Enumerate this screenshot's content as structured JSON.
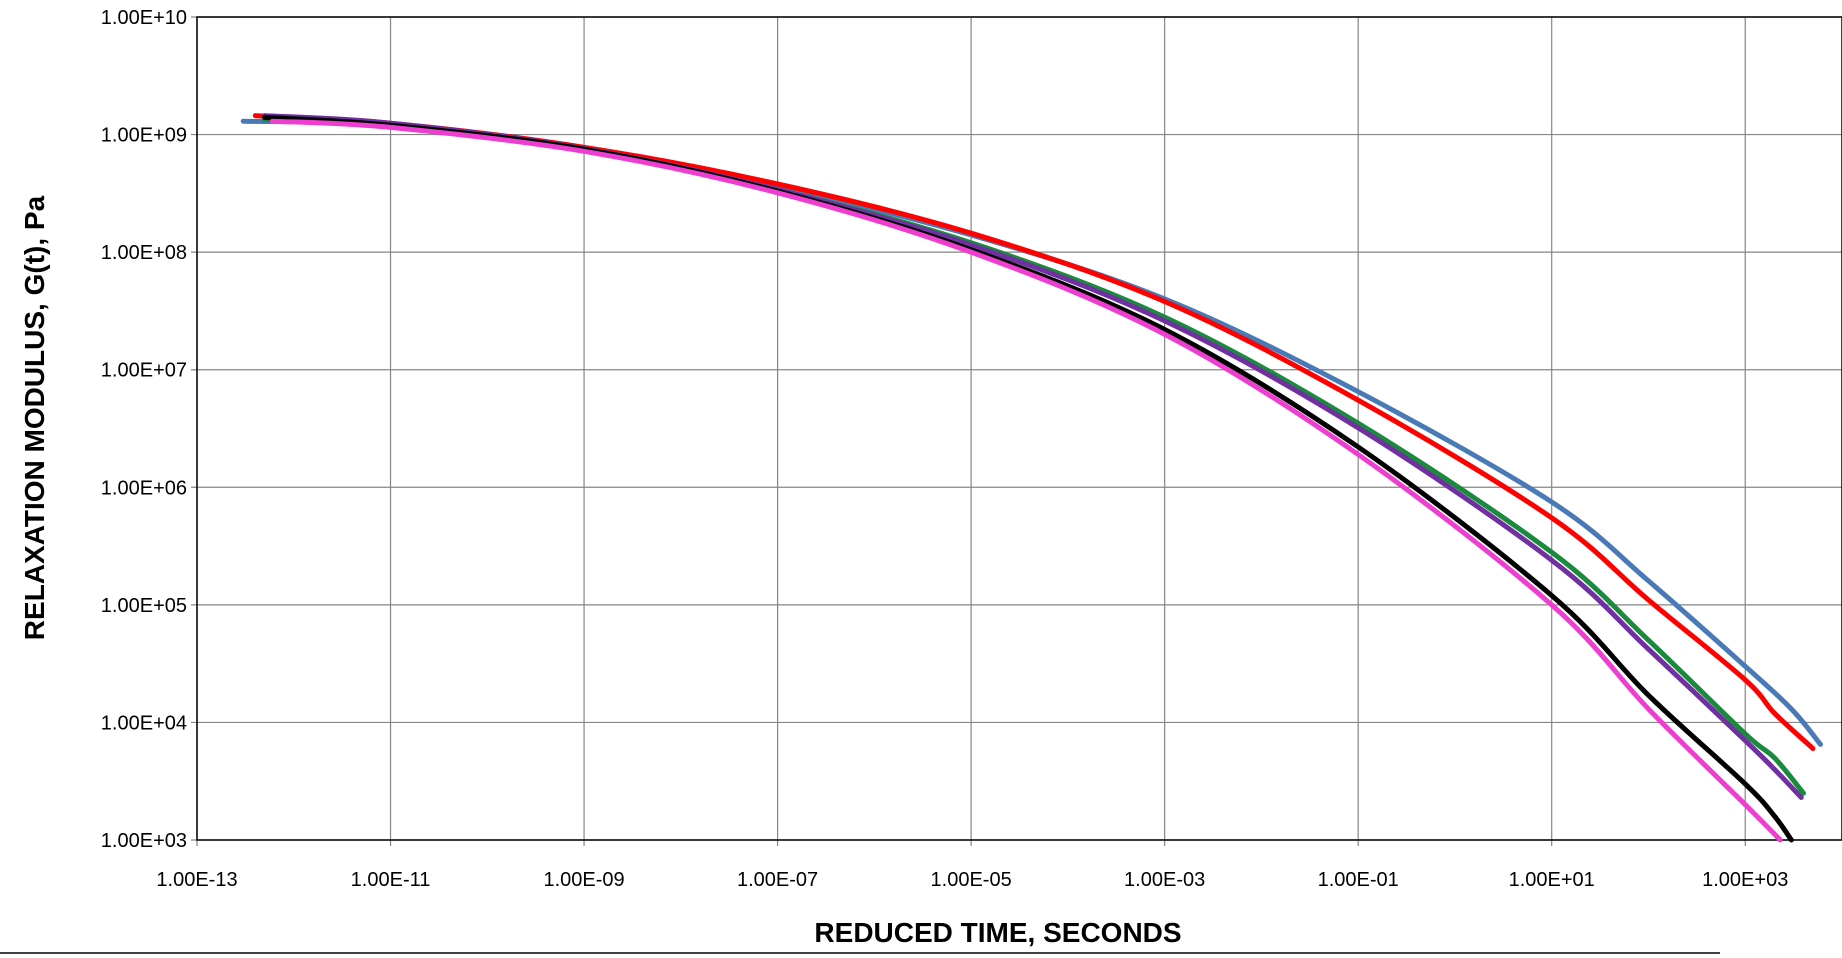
{
  "chart_data": {
    "type": "line",
    "x_scale": "log",
    "y_scale": "log",
    "xlim": [
      1e-13,
      10000.0
    ],
    "ylim": [
      1000.0,
      10000000000.0
    ],
    "xlabel": "REDUCED TIME, SECONDS",
    "ylabel": "RELAXATION MODULUS, G(t), Pa",
    "grid": true,
    "legend": "none",
    "x_ticks": [
      1e-13,
      1e-11,
      1e-09,
      1e-07,
      1e-05,
      0.001,
      0.1,
      10.0,
      1000.0
    ],
    "x_tick_labels": [
      "1.00E-13",
      "1.00E-11",
      "1.00E-09",
      "1.00E-07",
      "1.00E-05",
      "1.00E-03",
      "1.00E-01",
      "1.00E+01",
      "1.00E+03"
    ],
    "y_ticks": [
      1000.0,
      10000.0,
      100000.0,
      1000000.0,
      10000000.0,
      100000000.0,
      1000000000.0,
      10000000000.0
    ],
    "y_tick_labels": [
      "1.00E+03",
      "1.00E+04",
      "1.00E+05",
      "1.00E+06",
      "1.00E+07",
      "1.00E+08",
      "1.00E+09",
      "1.00E+10"
    ],
    "series": [
      {
        "color": "#4a7ab5",
        "points": [
          [
            3e-13,
            1300000000.0
          ],
          [
            1e-11,
            1200000000.0
          ],
          [
            1e-09,
            750000000.0
          ],
          [
            1e-07,
            360000000.0
          ],
          [
            1e-05,
            140000000.0
          ],
          [
            0.001,
            40000000.0
          ],
          [
            0.1,
            6500000.0
          ],
          [
            10.0,
            750000.0
          ],
          [
            100.0,
            160000.0
          ],
          [
            1000.0,
            30000.0
          ],
          [
            3000.0,
            13000.0
          ],
          [
            6000.0,
            6500.0
          ]
        ]
      },
      {
        "color": "#ff0000",
        "points": [
          [
            4e-13,
            1450000000.0
          ],
          [
            1e-11,
            1250000000.0
          ],
          [
            1e-09,
            780000000.0
          ],
          [
            1e-07,
            380000000.0
          ],
          [
            1e-05,
            145000000.0
          ],
          [
            0.001,
            38000000.0
          ],
          [
            0.1,
            5500000.0
          ],
          [
            10.0,
            550000.0
          ],
          [
            100.0,
            110000.0
          ],
          [
            1000.0,
            23000.0
          ],
          [
            2000.0,
            12000.0
          ],
          [
            5000.0,
            6000.0
          ]
        ]
      },
      {
        "color": "#1a8a3c",
        "points": [
          [
            5e-13,
            1350000000.0
          ],
          [
            1e-11,
            1200000000.0
          ],
          [
            1e-09,
            750000000.0
          ],
          [
            1e-07,
            340000000.0
          ],
          [
            1e-05,
            120000000.0
          ],
          [
            0.001,
            28000000.0
          ],
          [
            0.1,
            3500000.0
          ],
          [
            10.0,
            280000.0
          ],
          [
            100.0,
            50000.0
          ],
          [
            1000.0,
            8000.0
          ],
          [
            2000.0,
            5000.0
          ],
          [
            4000.0,
            2500.0
          ]
        ]
      },
      {
        "color": "#7030a0",
        "points": [
          [
            5e-13,
            1450000000.0
          ],
          [
            1e-11,
            1250000000.0
          ],
          [
            1e-09,
            760000000.0
          ],
          [
            1e-07,
            340000000.0
          ],
          [
            1e-05,
            115000000.0
          ],
          [
            0.001,
            26000000.0
          ],
          [
            0.1,
            3200000.0
          ],
          [
            10.0,
            240000.0
          ],
          [
            100.0,
            42000.0
          ],
          [
            1000.0,
            7000.0
          ],
          [
            2000.0,
            4000.0
          ],
          [
            3800.0,
            2300.0
          ]
        ]
      },
      {
        "color": "#000000",
        "points": [
          [
            5e-13,
            1400000000.0
          ],
          [
            1e-11,
            1200000000.0
          ],
          [
            1e-09,
            750000000.0
          ],
          [
            1e-07,
            330000000.0
          ],
          [
            1e-05,
            105000000.0
          ],
          [
            0.001,
            22000000.0
          ],
          [
            0.1,
            2200000.0
          ],
          [
            10.0,
            120000.0
          ],
          [
            100.0,
            17000.0
          ],
          [
            1000.0,
            3000.0
          ],
          [
            2000.0,
            1600.0
          ],
          [
            3000.0,
            1000.0
          ]
        ]
      },
      {
        "color": "#ee3ecf",
        "points": [
          [
            6e-13,
            1300000000.0
          ],
          [
            1e-11,
            1150000000.0
          ],
          [
            1e-09,
            720000000.0
          ],
          [
            1e-07,
            320000000.0
          ],
          [
            1e-05,
            100000000.0
          ],
          [
            0.001,
            20000000.0
          ],
          [
            0.1,
            1900000.0
          ],
          [
            10.0,
            100000.0
          ],
          [
            100.0,
            13000.0
          ],
          [
            1000.0,
            2000.0
          ],
          [
            2300.0,
            1000.0
          ]
        ]
      }
    ]
  }
}
